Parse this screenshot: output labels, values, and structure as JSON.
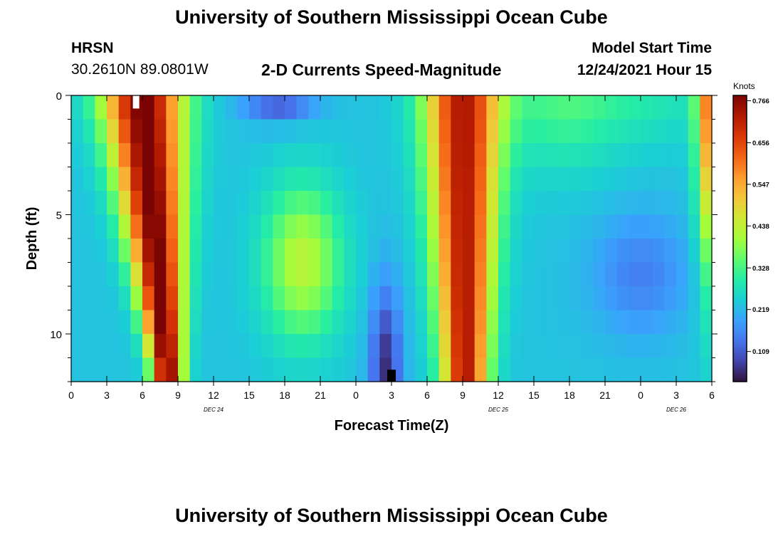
{
  "page": {
    "title": "University of Southern Mississippi Ocean Cube",
    "bottom_title": "University of Southern Mississippi Ocean Cube",
    "station": "HRSN",
    "coords": "30.2610N  89.0801W",
    "plot_title": "2-D Currents Speed-Magnitude",
    "model_start_label": "Model Start Time",
    "model_start_value": "12/24/2021 Hour 15"
  },
  "colors": {
    "scale": [
      "#30123b",
      "#4145ab",
      "#4675ed",
      "#39a2fc",
      "#1bcfd4",
      "#24eca6",
      "#61fc6c",
      "#a4fc3b",
      "#d1e834",
      "#f3c63a",
      "#fe9b2d",
      "#f36315",
      "#d93806",
      "#b11901",
      "#7a0403"
    ]
  },
  "chart_data": {
    "type": "heatmap",
    "title": "2-D Currents Speed-Magnitude",
    "xlabel": "Forecast Time(Z)",
    "ylabel": "Depth (ft)",
    "x_tick_labels": [
      "0",
      "3",
      "6",
      "9",
      "12",
      "15",
      "18",
      "21",
      "0",
      "3",
      "6",
      "9",
      "12",
      "15",
      "18",
      "21",
      "0",
      "3",
      "6"
    ],
    "x_range": [
      0,
      54
    ],
    "date_labels": [
      {
        "text": "DEC 24",
        "at": 12
      },
      {
        "text": "DEC 25",
        "at": 36
      },
      {
        "text": "DEC 26",
        "at": 51
      }
    ],
    "y_tick_labels": [
      "0",
      "5",
      "10"
    ],
    "y_tick_values": [
      0,
      5,
      10
    ],
    "y_range": [
      0,
      12
    ],
    "colorbar": {
      "label": "Knots",
      "tick_labels": [
        "0.766",
        "0.656",
        "0.547",
        "0.438",
        "0.328",
        "0.219",
        "0.109"
      ],
      "tick_values": [
        0.766,
        0.656,
        0.547,
        0.438,
        0.328,
        0.219,
        0.109
      ],
      "range": [
        0.03,
        0.78
      ]
    },
    "depth_levels": 12,
    "time_columns": 54,
    "grid": false,
    "markers": [
      {
        "kind": "white",
        "time": 5.5,
        "depth_range": [
          0,
          0.55
        ]
      },
      {
        "kind": "black",
        "time": 3,
        "day": 2,
        "depth_range": [
          11.5,
          12
        ]
      }
    ]
  }
}
